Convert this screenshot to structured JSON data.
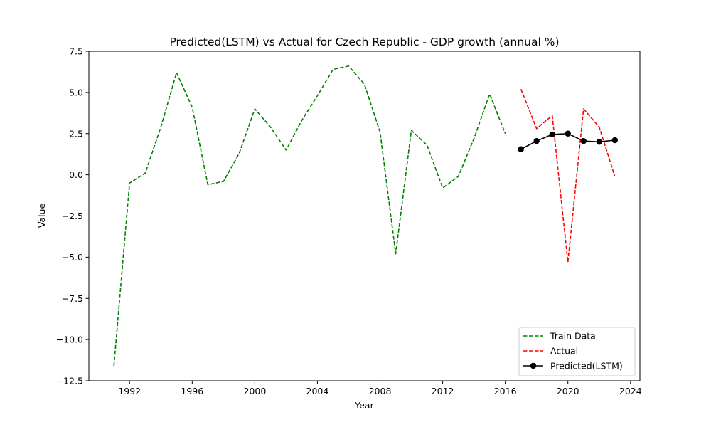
{
  "chart_data": {
    "type": "line",
    "title": "Predicted(LSTM) vs Actual for Czech Republic - GDP growth (annual %)",
    "xlabel": "Year",
    "ylabel": "Value",
    "xlim": [
      1989.4,
      2024.6
    ],
    "ylim": [
      -12.5,
      7.5
    ],
    "x_ticks": [
      1992,
      1996,
      2000,
      2004,
      2008,
      2012,
      2016,
      2020,
      2024
    ],
    "y_ticks": [
      -12.5,
      -10.0,
      -7.5,
      -5.0,
      -2.5,
      0.0,
      2.5,
      5.0,
      7.5
    ],
    "y_tick_labels": [
      "−12.5",
      "−10.0",
      "−7.5",
      "−5.0",
      "−2.5",
      "0.0",
      "2.5",
      "5.0",
      "7.5"
    ],
    "grid": false,
    "legend_position": "lower-right",
    "series": [
      {
        "name": "Train Data",
        "color": "#008000",
        "style": "dashed",
        "marker": "none",
        "x": [
          1991,
          1992,
          1993,
          1994,
          1995,
          1996,
          1997,
          1998,
          1999,
          2000,
          2001,
          2002,
          2003,
          2004,
          2005,
          2006,
          2007,
          2008,
          2009,
          2010,
          2011,
          2012,
          2013,
          2014,
          2015,
          2016
        ],
        "y": [
          -11.6,
          -0.5,
          0.1,
          2.9,
          6.2,
          4.1,
          -0.6,
          -0.4,
          1.3,
          4.0,
          2.9,
          1.5,
          3.3,
          4.8,
          6.4,
          6.6,
          5.5,
          2.6,
          -4.8,
          2.7,
          1.8,
          -0.8,
          -0.1,
          2.2,
          4.9,
          2.5
        ]
      },
      {
        "name": "Actual",
        "color": "#ff0000",
        "style": "dashed",
        "marker": "none",
        "x": [
          2017,
          2018,
          2019,
          2020,
          2021,
          2022,
          2023
        ],
        "y": [
          5.2,
          2.8,
          3.6,
          -5.3,
          4.0,
          2.9,
          -0.1
        ]
      },
      {
        "name": "Predicted(LSTM)",
        "color": "#000000",
        "style": "solid",
        "marker": "circle",
        "x": [
          2017,
          2018,
          2019,
          2020,
          2021,
          2022,
          2023
        ],
        "y": [
          1.55,
          2.05,
          2.45,
          2.5,
          2.05,
          2.0,
          2.1
        ]
      }
    ]
  }
}
